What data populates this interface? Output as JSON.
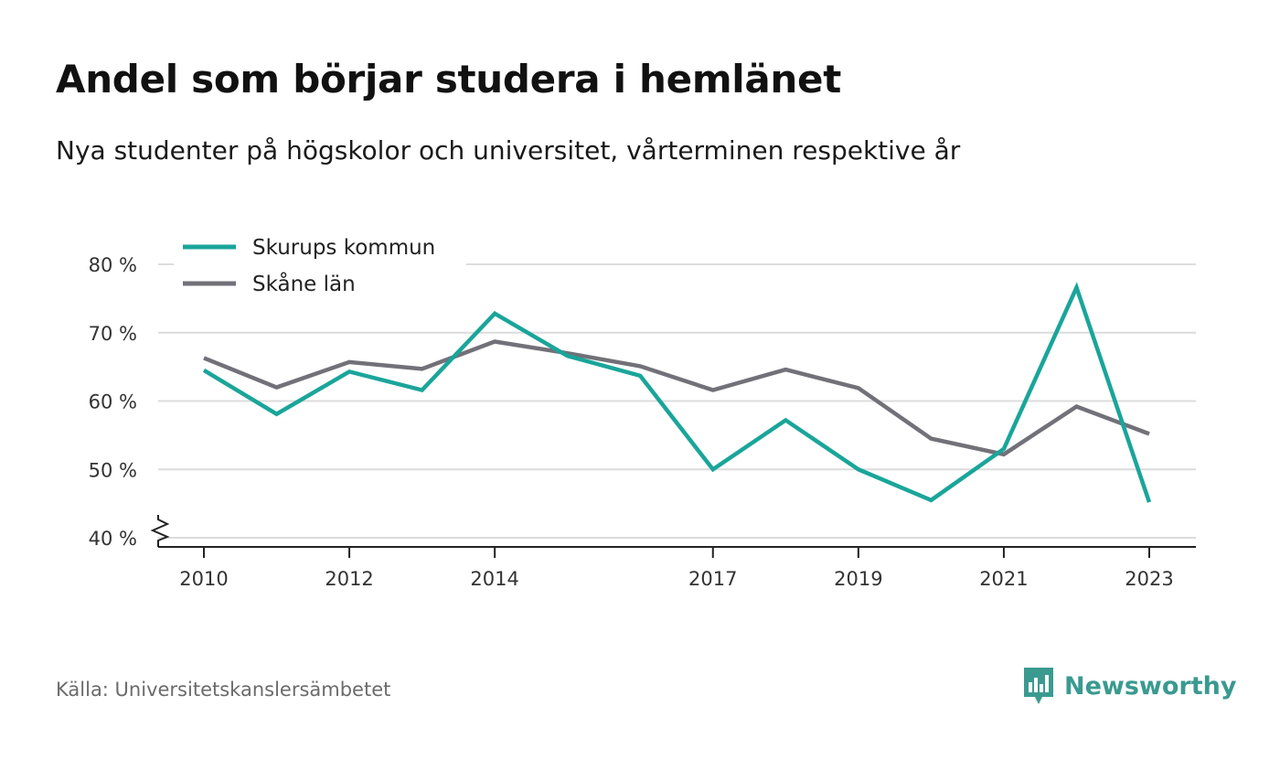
{
  "title": "Andel som börjar studera i hemlänet",
  "subtitle": "Nya studenter på högskolor och universitet, vårterminen respektive år",
  "source": "Källa: Universitetskanslersämbetet",
  "brand": {
    "name": "Newsworthy",
    "icon": "newsworthy-logo-icon",
    "color": "#3a9a90"
  },
  "chart_data": {
    "type": "line",
    "x": [
      2010,
      2011,
      2012,
      2013,
      2014,
      2015,
      2016,
      2017,
      2018,
      2019,
      2020,
      2021,
      2022,
      2023
    ],
    "x_tick_labels": [
      "2010",
      "2012",
      "2014",
      "2017",
      "2019",
      "2021",
      "2023"
    ],
    "x_tick_values": [
      2010,
      2012,
      2014,
      2017,
      2019,
      2021,
      2023
    ],
    "y_tick_values": [
      40,
      50,
      60,
      70,
      80
    ],
    "y_tick_labels": [
      "40 %",
      "50 %",
      "60 %",
      "70 %",
      "80 %"
    ],
    "ylim": [
      40,
      80
    ],
    "y_axis_break": true,
    "grid": true,
    "legend_position": "top-left",
    "series": [
      {
        "name": "Skurups kommun",
        "color": "#1aa59a",
        "values": [
          64.5,
          58.1,
          64.3,
          61.6,
          72.8,
          66.6,
          63.7,
          50.0,
          57.2,
          50.0,
          45.5,
          53.0,
          76.6,
          45.2
        ]
      },
      {
        "name": "Skåne län",
        "color": "#727078",
        "values": [
          66.3,
          62.0,
          65.7,
          64.7,
          68.7,
          67.0,
          65.1,
          61.6,
          64.6,
          61.9,
          54.5,
          52.2,
          59.2,
          55.2
        ]
      }
    ]
  }
}
